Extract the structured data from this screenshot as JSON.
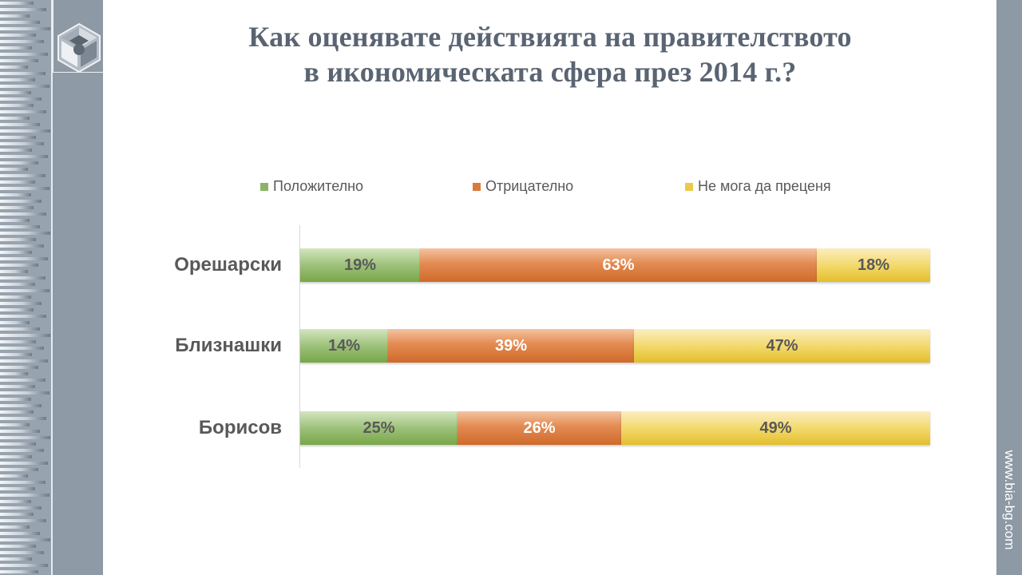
{
  "title": {
    "line1": "Как оценявате действията на правителството",
    "line2": "в икономическата сфера през 2014 г.?"
  },
  "branding": {
    "url": "www.bia-bg.com"
  },
  "colors": {
    "positive": "#8cb466",
    "negative": "#db7a3d",
    "undecided": "#ecc94a",
    "title": "#5a6472",
    "band": "#8d99a5"
  },
  "chart_data": {
    "type": "bar",
    "orientation": "horizontal",
    "stacked": true,
    "percent_stacked": true,
    "title": "Как оценявате действията на правителството в икономическата сфера през 2014 г.?",
    "xlabel": "",
    "ylabel": "",
    "xlim": [
      0,
      100
    ],
    "grid": false,
    "legend_position": "top",
    "categories": [
      "Орешарски",
      "Близнашки",
      "Борисов"
    ],
    "series": [
      {
        "name": "Положително",
        "values": [
          19,
          14,
          25
        ],
        "labels": [
          "19%",
          "14%",
          "25%"
        ]
      },
      {
        "name": "Отрицателно",
        "values": [
          63,
          39,
          26
        ],
        "labels": [
          "63%",
          "39%",
          "26%"
        ]
      },
      {
        "name": "Не мога да преценя",
        "values": [
          18,
          47,
          49
        ],
        "labels": [
          "18%",
          "47%",
          "49%"
        ]
      }
    ]
  }
}
